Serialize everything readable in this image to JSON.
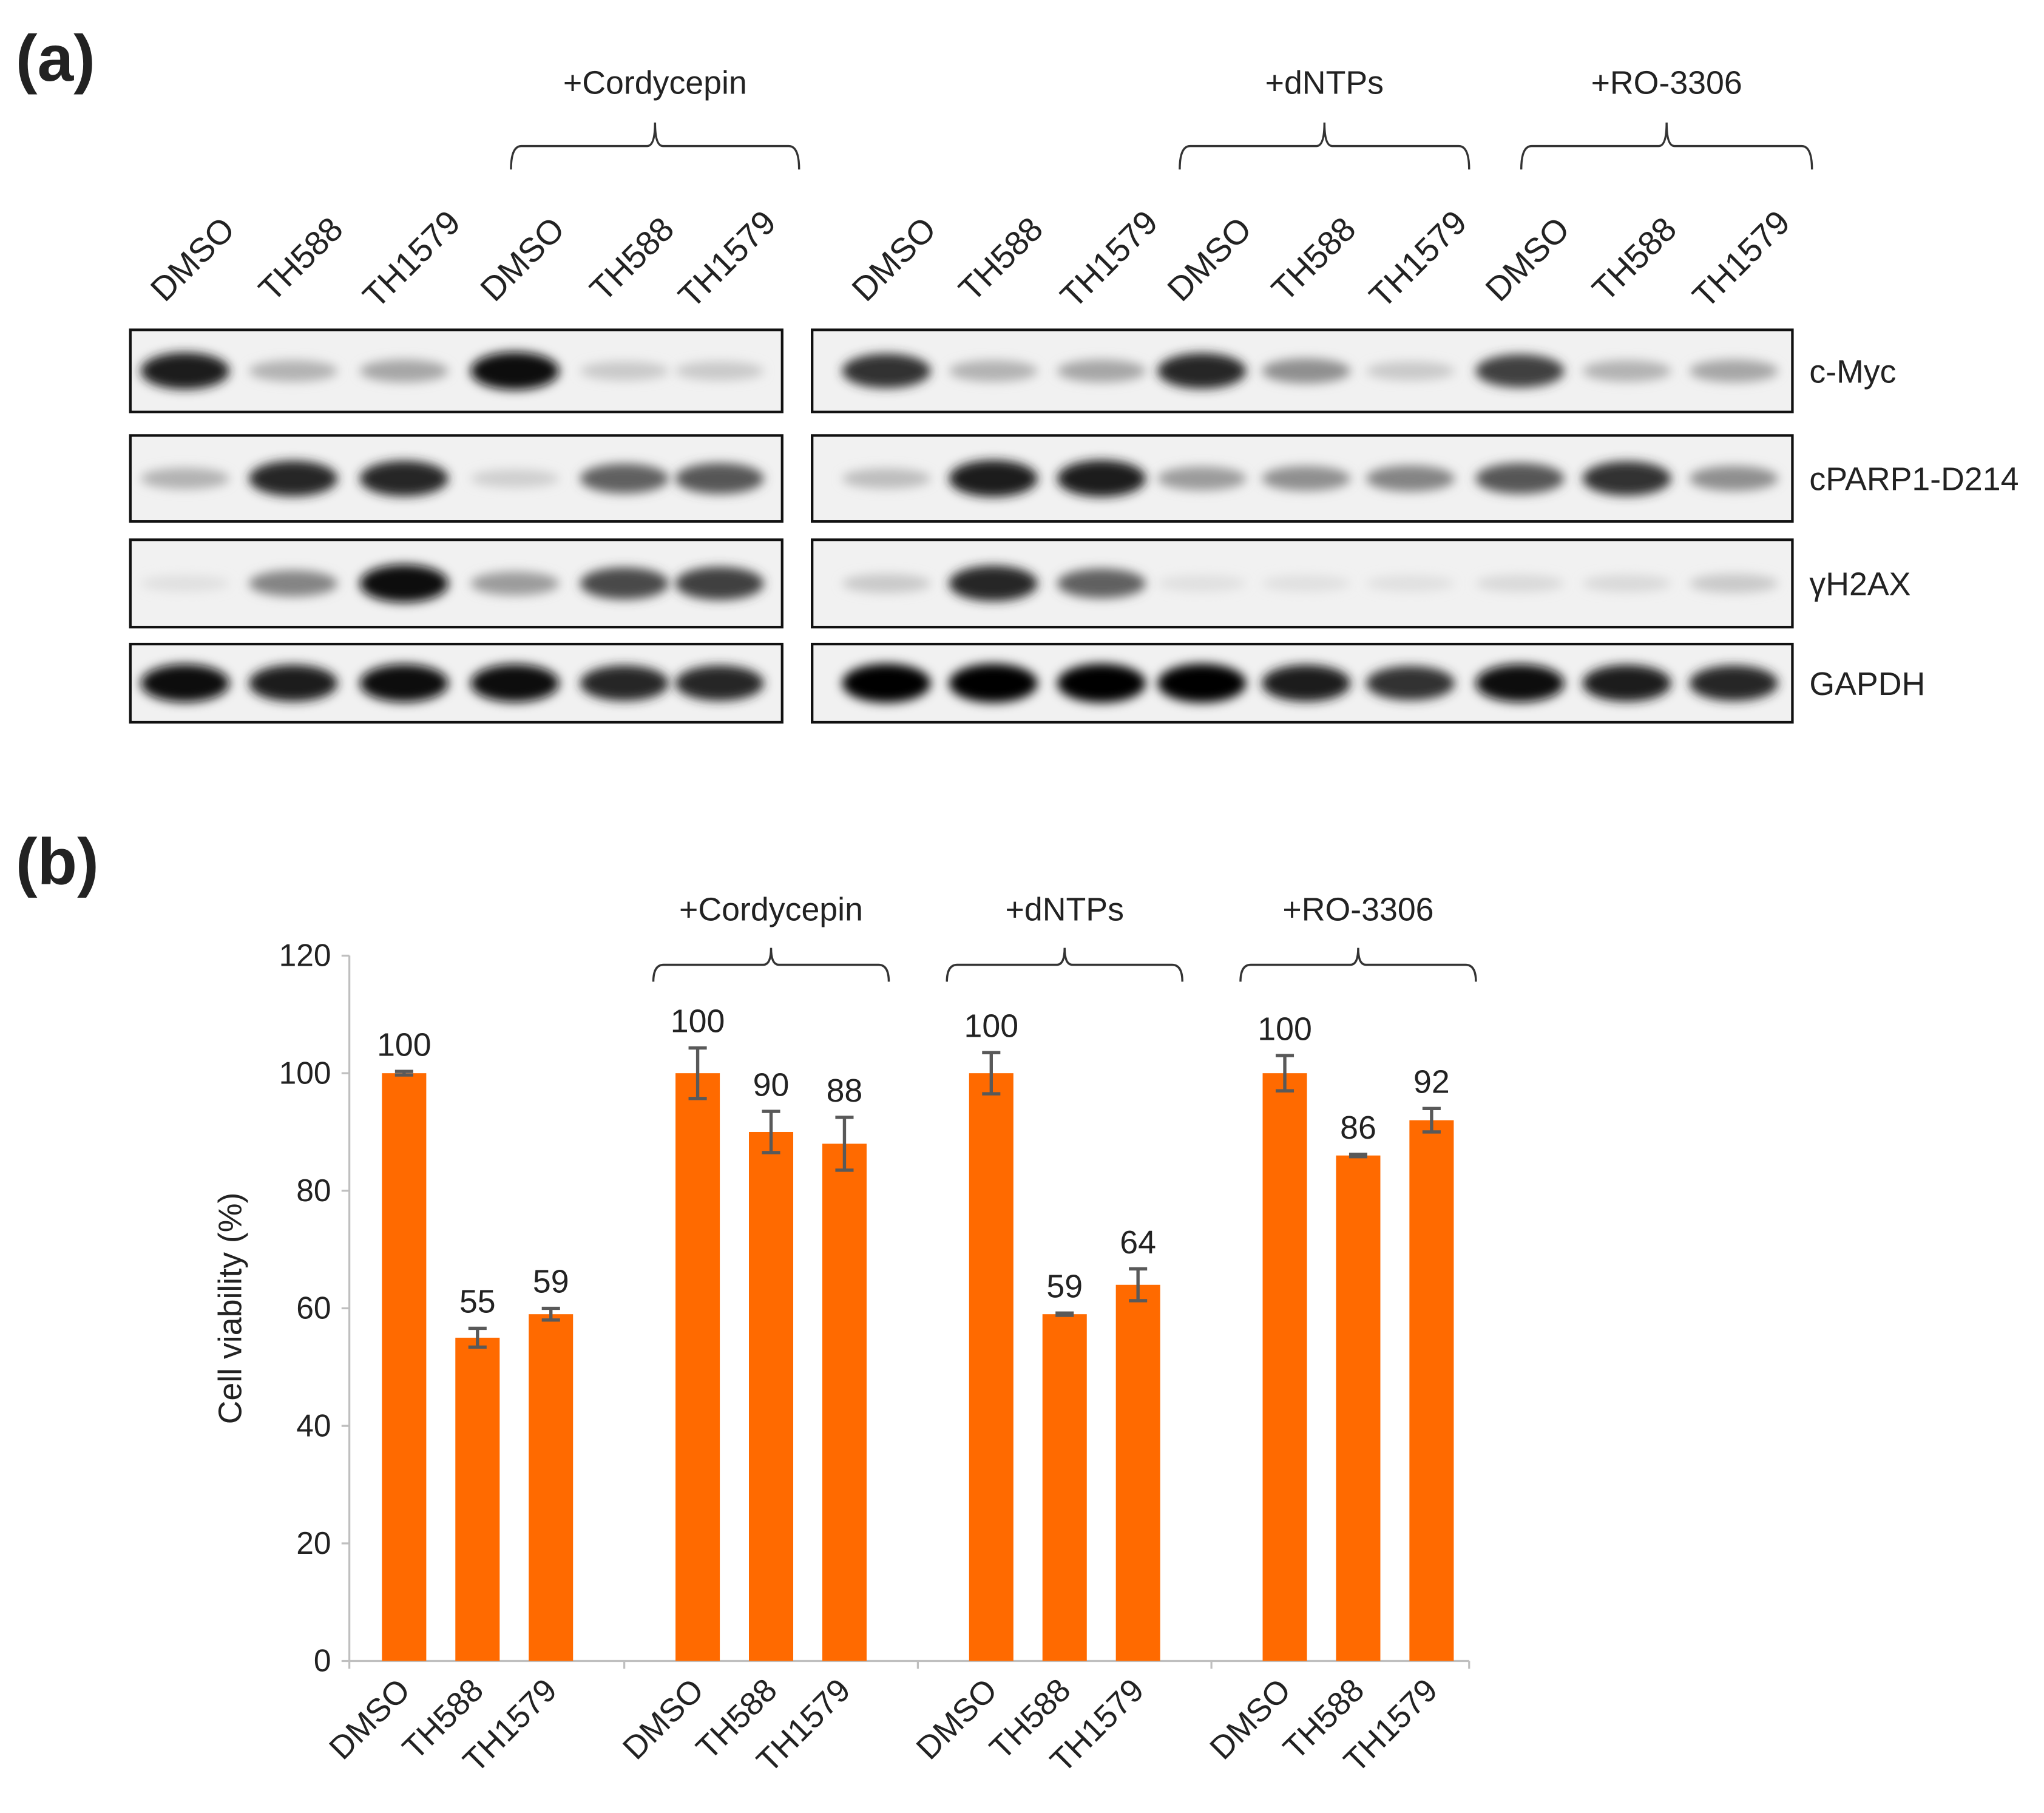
{
  "panel_a": {
    "label": "(a)",
    "groups": [
      "+Cordycepin",
      "+dNTPs",
      "+RO-3306"
    ],
    "lanes": [
      "DMSO",
      "TH588",
      "TH1579",
      "DMSO",
      "TH588",
      "TH1579",
      "DMSO",
      "TH588",
      "TH1579",
      "DMSO",
      "TH588",
      "TH1579",
      "DMSO",
      "TH588",
      "TH1579"
    ],
    "proteins": [
      "c-Myc",
      "cPARP1-D214",
      "γH2AX",
      "GAPDH"
    ]
  },
  "chart_data": {
    "type": "bar",
    "panel_label": "(b)",
    "y_label": "Cell viability (%)",
    "groups": [
      "+Cordycepin",
      "+dNTPs",
      "+RO-3306"
    ],
    "categories": [
      "DMSO",
      "TH588",
      "TH1579",
      "DMSO",
      "TH588",
      "TH1579",
      "DMSO",
      "TH588",
      "TH1579",
      "DMSO",
      "TH588",
      "TH1579"
    ],
    "values": [
      100,
      55,
      59,
      100,
      90,
      88,
      100,
      59,
      64,
      100,
      86,
      92
    ],
    "errors": [
      0.3,
      1.6,
      1,
      4.3,
      3.5,
      4.5,
      3.5,
      0.2,
      2.7,
      3,
      0.2,
      2
    ],
    "color": "#ff6a00",
    "ylim": [
      0,
      120
    ],
    "yticks": [
      0,
      20,
      40,
      60,
      80,
      100,
      120
    ]
  }
}
